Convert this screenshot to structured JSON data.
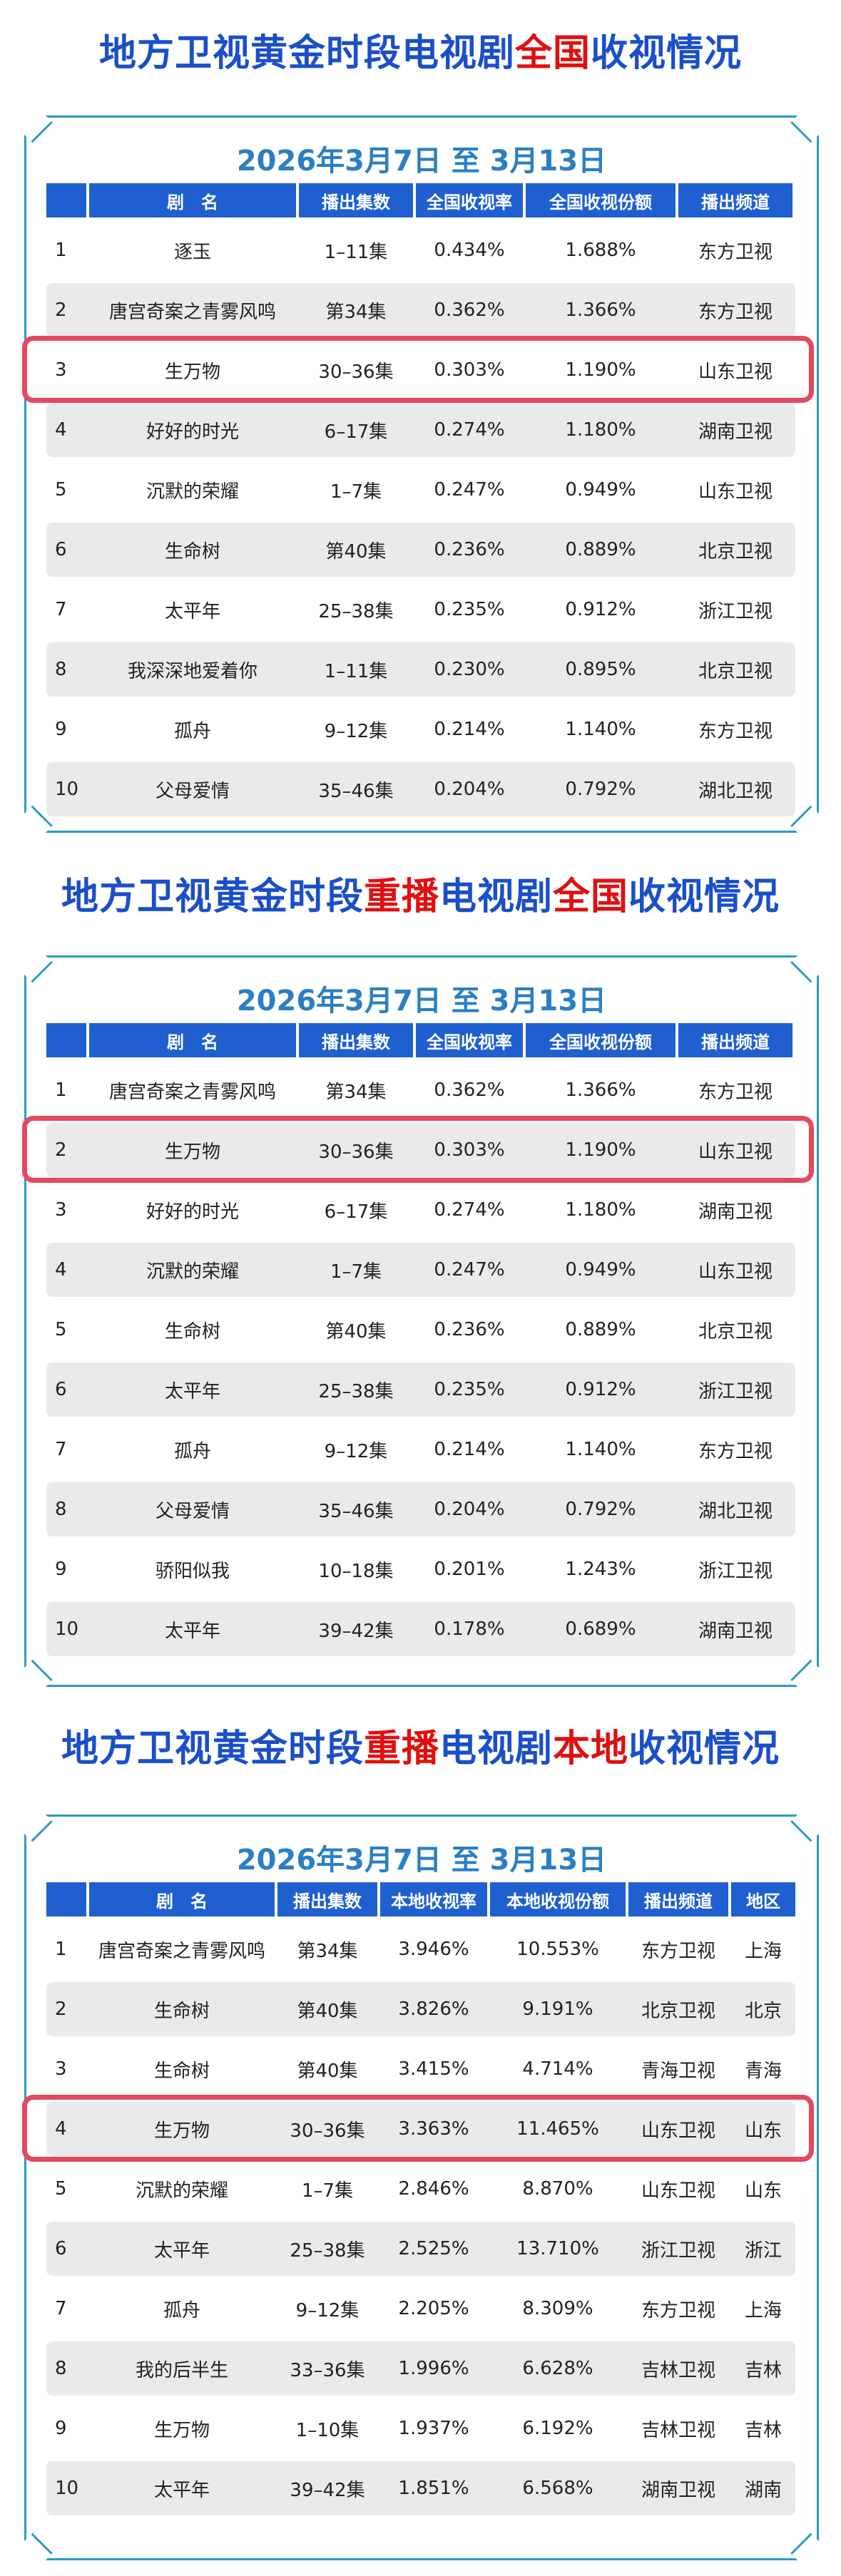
{
  "titles": [
    {
      "pre": "地方卫视黄金时段电视剧",
      "red": "全国",
      "post": "收视情况",
      "red2": ""
    },
    {
      "pre": "地方卫视黄金时段",
      "red": "重播",
      "mid": "电视剧",
      "red2": "全国",
      "post": "收视情况"
    },
    {
      "pre": "地方卫视黄金时段",
      "red": "重播",
      "mid": "电视剧",
      "red2": "本地",
      "post": "收视情况"
    }
  ],
  "date_range": "2026年3月7日 至 3月13日",
  "table1": {
    "headers": [
      "",
      "剧　名",
      "播出集数",
      "全国收视率",
      "全国收视份额",
      "播出频道"
    ],
    "rows": [
      [
        "1",
        "逐玉",
        "1–11集",
        "0.434%",
        "1.688%",
        "东方卫视"
      ],
      [
        "2",
        "唐宫奇案之青雾风鸣",
        "第34集",
        "0.362%",
        "1.366%",
        "东方卫视"
      ],
      [
        "3",
        "生万物",
        "30–36集",
        "0.303%",
        "1.190%",
        "山东卫视"
      ],
      [
        "4",
        "好好的时光",
        "6–17集",
        "0.274%",
        "1.180%",
        "湖南卫视"
      ],
      [
        "5",
        "沉默的荣耀",
        "1–7集",
        "0.247%",
        "0.949%",
        "山东卫视"
      ],
      [
        "6",
        "生命树",
        "第40集",
        "0.236%",
        "0.889%",
        "北京卫视"
      ],
      [
        "7",
        "太平年",
        "25–38集",
        "0.235%",
        "0.912%",
        "浙江卫视"
      ],
      [
        "8",
        "我深深地爱着你",
        "1–11集",
        "0.230%",
        "0.895%",
        "北京卫视"
      ],
      [
        "9",
        "孤舟",
        "9–12集",
        "0.214%",
        "1.140%",
        "东方卫视"
      ],
      [
        "10",
        "父母爱情",
        "35–46集",
        "0.204%",
        "0.792%",
        "湖北卫视"
      ]
    ]
  },
  "table2": {
    "headers": [
      "",
      "剧　名",
      "播出集数",
      "全国收视率",
      "全国收视份额",
      "播出频道"
    ],
    "rows": [
      [
        "1",
        "唐宫奇案之青雾风鸣",
        "第34集",
        "0.362%",
        "1.366%",
        "东方卫视"
      ],
      [
        "2",
        "生万物",
        "30–36集",
        "0.303%",
        "1.190%",
        "山东卫视"
      ],
      [
        "3",
        "好好的时光",
        "6–17集",
        "0.274%",
        "1.180%",
        "湖南卫视"
      ],
      [
        "4",
        "沉默的荣耀",
        "1–7集",
        "0.247%",
        "0.949%",
        "山东卫视"
      ],
      [
        "5",
        "生命树",
        "第40集",
        "0.236%",
        "0.889%",
        "北京卫视"
      ],
      [
        "6",
        "太平年",
        "25–38集",
        "0.235%",
        "0.912%",
        "浙江卫视"
      ],
      [
        "7",
        "孤舟",
        "9–12集",
        "0.214%",
        "1.140%",
        "东方卫视"
      ],
      [
        "8",
        "父母爱情",
        "35–46集",
        "0.204%",
        "0.792%",
        "湖北卫视"
      ],
      [
        "9",
        "骄阳似我",
        "10–18集",
        "0.201%",
        "1.243%",
        "浙江卫视"
      ],
      [
        "10",
        "太平年",
        "39–42集",
        "0.178%",
        "0.689%",
        "湖南卫视"
      ]
    ]
  },
  "table3": {
    "headers": [
      "",
      "剧　名",
      "播出集数",
      "本地收视率",
      "本地收视份额",
      "播出频道",
      "地区"
    ],
    "rows": [
      [
        "1",
        "唐宫奇案之青雾风鸣",
        "第34集",
        "3.946%",
        "10.553%",
        "东方卫视",
        "上海"
      ],
      [
        "2",
        "生命树",
        "第40集",
        "3.826%",
        "9.191%",
        "北京卫视",
        "北京"
      ],
      [
        "3",
        "生命树",
        "第40集",
        "3.415%",
        "4.714%",
        "青海卫视",
        "青海"
      ],
      [
        "4",
        "生万物",
        "30–36集",
        "3.363%",
        "11.465%",
        "山东卫视",
        "山东"
      ],
      [
        "5",
        "沉默的荣耀",
        "1–7集",
        "2.846%",
        "8.870%",
        "山东卫视",
        "山东"
      ],
      [
        "6",
        "太平年",
        "25–38集",
        "2.525%",
        "13.710%",
        "浙江卫视",
        "浙江"
      ],
      [
        "7",
        "孤舟",
        "9–12集",
        "2.205%",
        "8.309%",
        "东方卫视",
        "上海"
      ],
      [
        "8",
        "我的后半生",
        "33–36集",
        "1.996%",
        "6.628%",
        "吉林卫视",
        "吉林"
      ],
      [
        "9",
        "生万物",
        "1–10集",
        "1.937%",
        "6.192%",
        "吉林卫视",
        "吉林"
      ],
      [
        "10",
        "太平年",
        "39–42集",
        "1.851%",
        "6.568%",
        "湖南卫视",
        "湖南"
      ]
    ]
  },
  "colors": {
    "title_blue": "#1a4fc9",
    "title_red": "#e01010",
    "header_blue": "#1f5fd0",
    "frame": "#2a9bc4",
    "highlight": "#e5495f",
    "date_blue": "#2a7fc4"
  }
}
